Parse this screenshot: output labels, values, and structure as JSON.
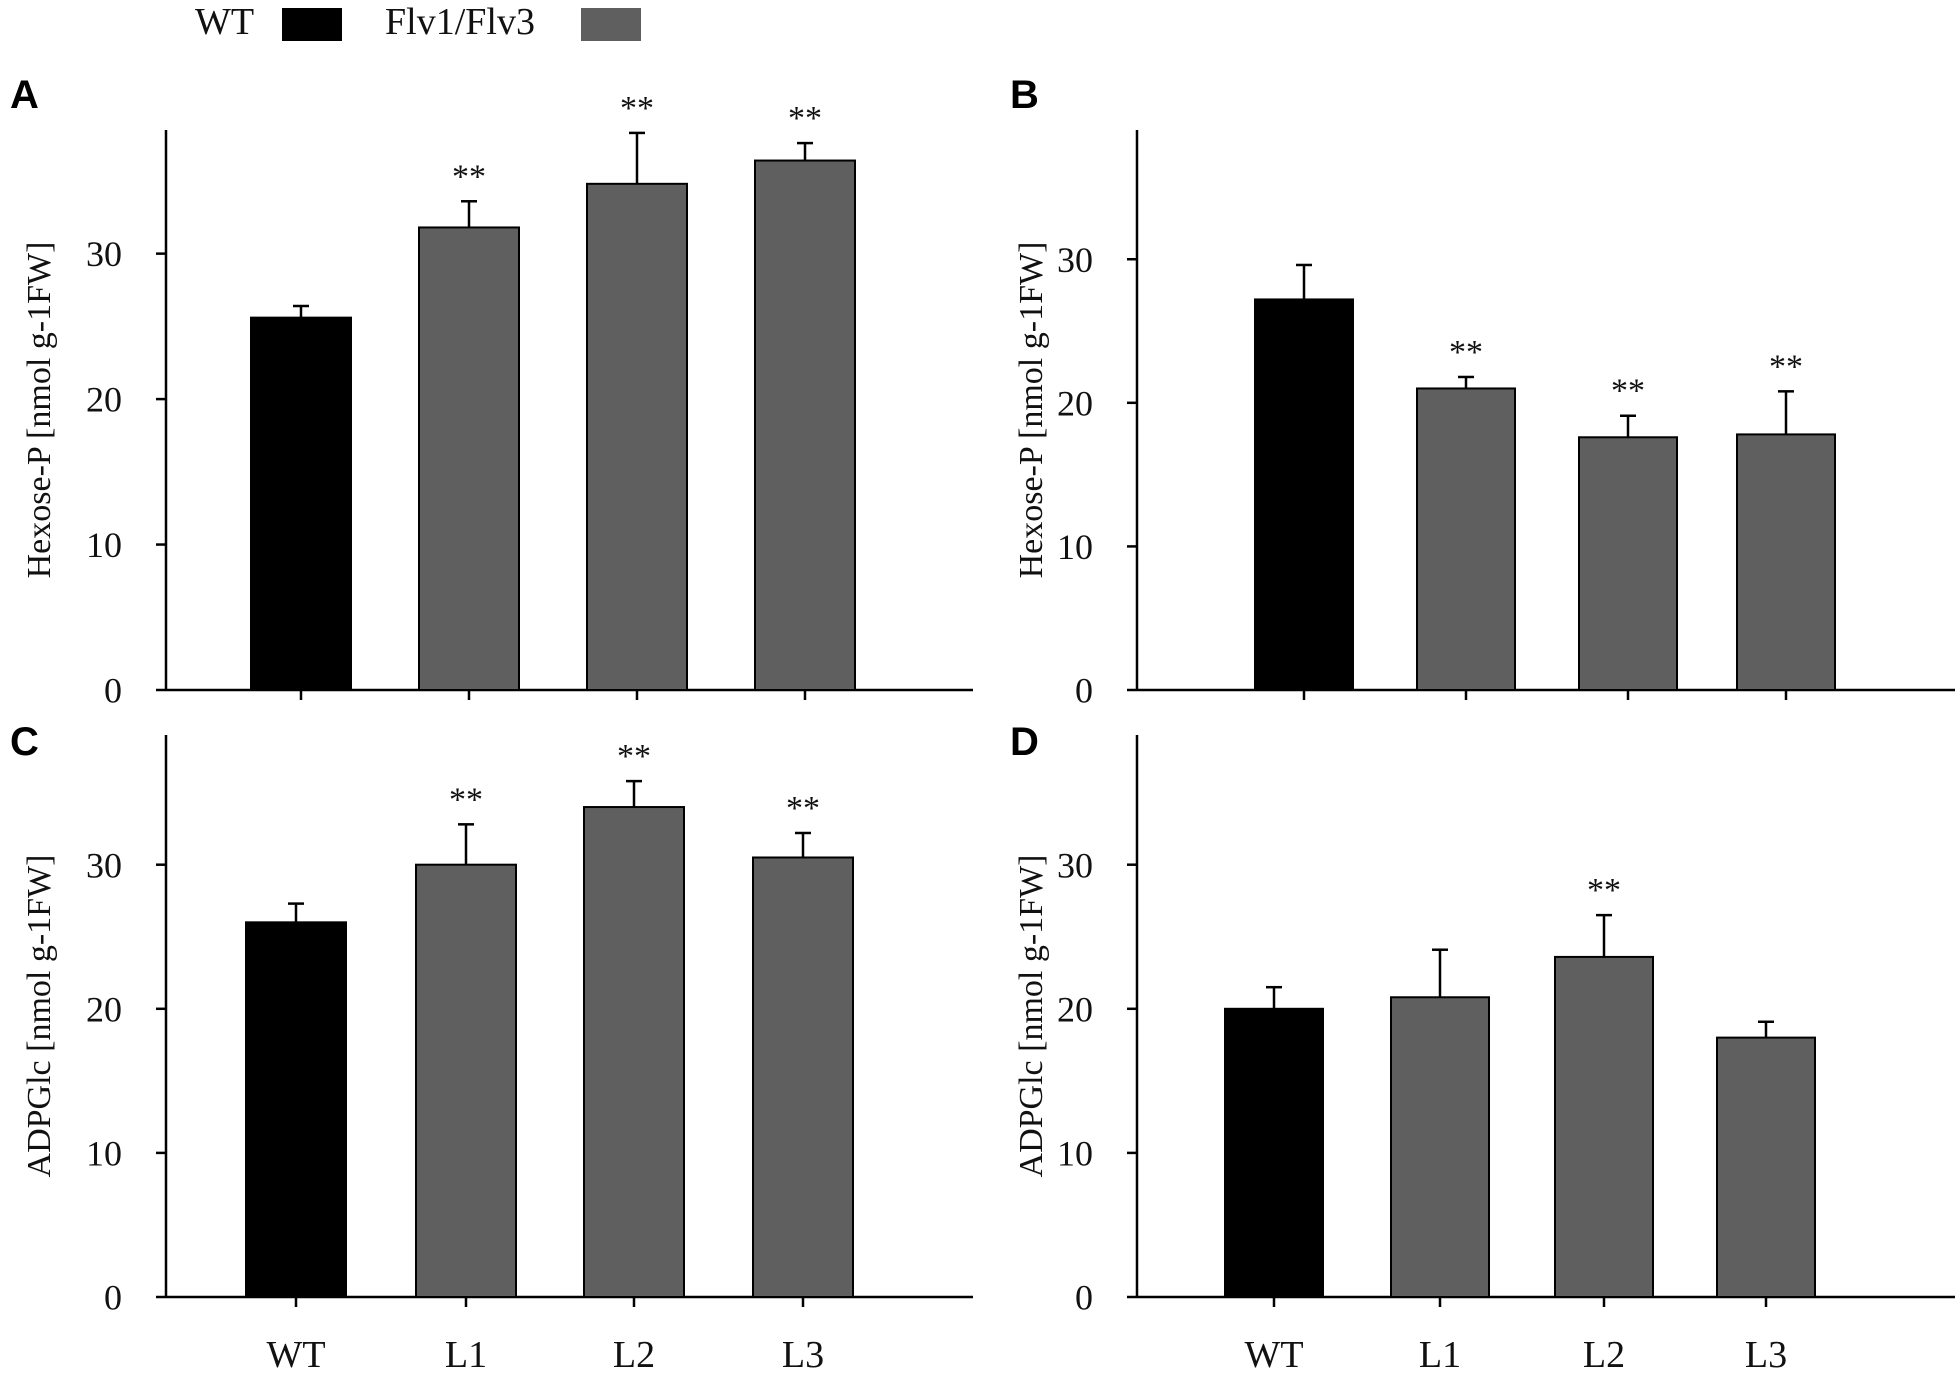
{
  "legend": {
    "items": [
      {
        "label": "WT",
        "color": "#000000"
      },
      {
        "label": "Flv1/Flv3",
        "color": "#5f5f5f"
      }
    ]
  },
  "x_tick_labels": [
    "WT",
    "L1",
    "L2",
    "L3"
  ],
  "chart_data": [
    {
      "panel": "A",
      "type": "bar",
      "categories": [
        "WT",
        "L1",
        "L2",
        "L3"
      ],
      "values": [
        25.6,
        31.8,
        34.8,
        36.4
      ],
      "errors": [
        0.8,
        1.8,
        3.5,
        1.2
      ],
      "significance": [
        "",
        "**",
        "**",
        "**"
      ],
      "ylabel": "Hexose-P [nmol g-1FW]",
      "ylim": [
        0,
        38.5
      ],
      "yticks": [
        0,
        10,
        20,
        30
      ],
      "show_xlabels": false
    },
    {
      "panel": "B",
      "type": "bar",
      "categories": [
        "WT",
        "L1",
        "L2",
        "L3"
      ],
      "values": [
        27.2,
        21.0,
        17.6,
        17.8
      ],
      "errors": [
        2.4,
        0.8,
        1.5,
        3.0
      ],
      "significance": [
        "",
        "**",
        "**",
        "**"
      ],
      "ylabel": "Hexose-P [nmol g-1FW]",
      "ylim": [
        0,
        39
      ],
      "yticks": [
        0,
        10,
        20,
        30
      ],
      "show_xlabels": false
    },
    {
      "panel": "C",
      "type": "bar",
      "categories": [
        "WT",
        "L1",
        "L2",
        "L3"
      ],
      "values": [
        26.0,
        30.0,
        34.0,
        30.5
      ],
      "errors": [
        1.3,
        2.8,
        1.8,
        1.7
      ],
      "significance": [
        "",
        "**",
        "**",
        "**"
      ],
      "ylabel": "ADPGlc [nmol g-1FW]",
      "ylim": [
        0,
        39
      ],
      "yticks": [
        0,
        10,
        20,
        30
      ],
      "show_xlabels": true
    },
    {
      "panel": "D",
      "type": "bar",
      "categories": [
        "WT",
        "L1",
        "L2",
        "L3"
      ],
      "values": [
        20.0,
        20.8,
        23.6,
        18.0
      ],
      "errors": [
        1.5,
        3.3,
        2.9,
        1.1
      ],
      "significance": [
        "",
        "",
        "**",
        ""
      ],
      "ylabel": "ADPGlc [nmol g-1FW]",
      "ylim": [
        0,
        39
      ],
      "yticks": [
        0,
        10,
        20,
        30
      ],
      "show_xlabels": true
    }
  ]
}
